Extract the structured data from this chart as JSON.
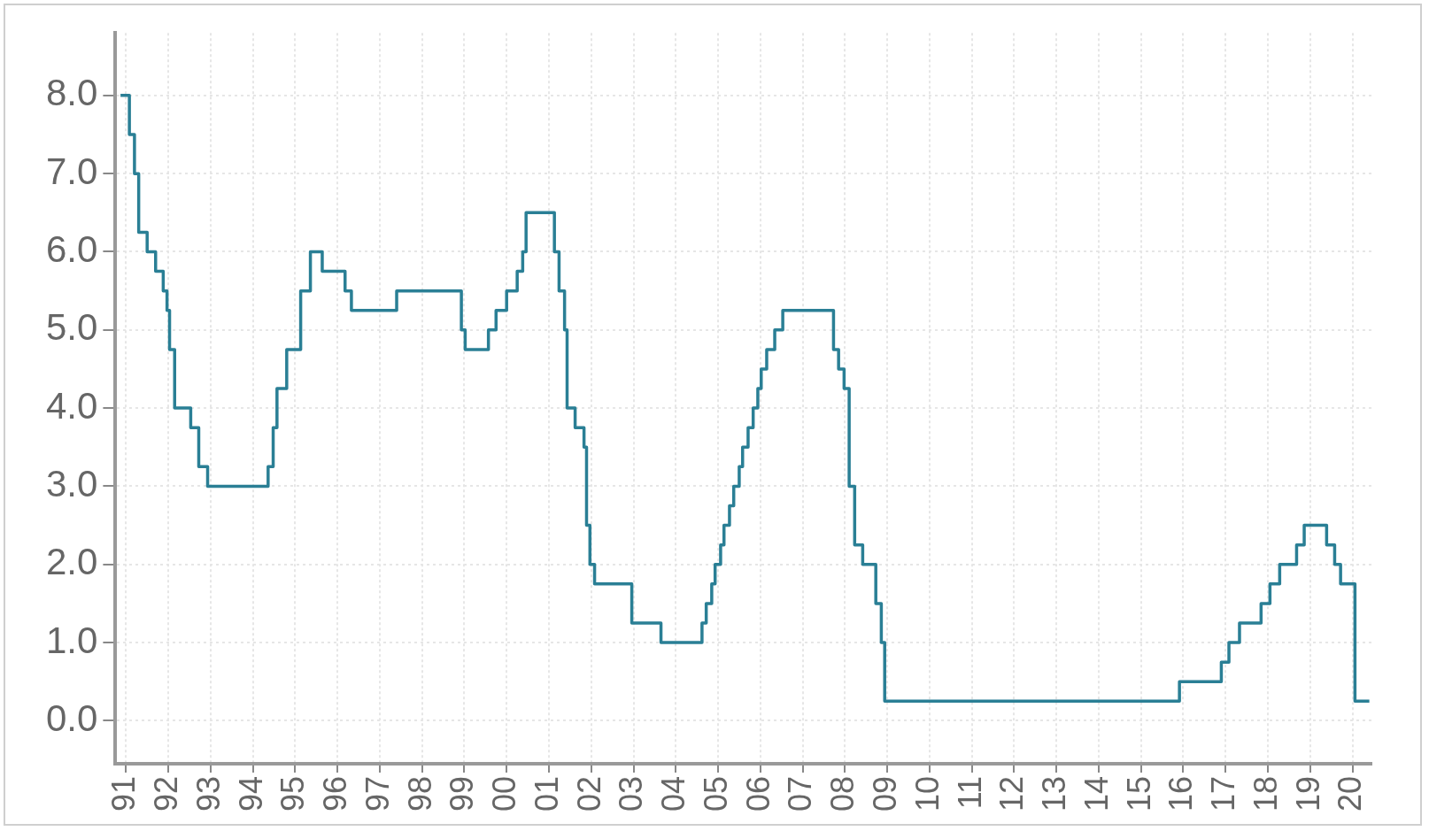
{
  "chart_data": {
    "type": "step",
    "x": [
      1990.87,
      1991.08,
      1991.2,
      1991.3,
      1991.5,
      1991.7,
      1991.88,
      1991.97,
      1992.03,
      1992.15,
      1992.53,
      1992.72,
      1992.93,
      1994.36,
      1994.48,
      1994.57,
      1994.8,
      1995.13,
      1995.36,
      1995.64,
      1996.18,
      1996.33,
      1997.4,
      1998.93,
      1999.02,
      1999.57,
      1999.75,
      2000.0,
      2000.25,
      2000.38,
      2000.46,
      2001.13,
      2001.24,
      2001.37,
      2001.43,
      2001.62,
      2001.83,
      2001.89,
      2001.97,
      2002.08,
      2002.96,
      2003.65,
      2004.62,
      2004.72,
      2004.85,
      2004.93,
      2005.06,
      2005.14,
      2005.27,
      2005.37,
      2005.5,
      2005.58,
      2005.71,
      2005.83,
      2005.94,
      2006.02,
      2006.15,
      2006.34,
      2006.53,
      2007.73,
      2007.85,
      2007.98,
      2008.1,
      2008.23,
      2008.42,
      2008.73,
      2008.86,
      2008.94,
      2015.91,
      2016.9,
      2017.08,
      2017.33,
      2017.84,
      2018.05,
      2018.28,
      2018.68,
      2018.86,
      2019.39,
      2019.58,
      2019.72,
      2020.06,
      2020.4
    ],
    "series": [
      {
        "color": "#2a7f95",
        "values": [
          8.0,
          7.5,
          7.0,
          6.25,
          6.0,
          5.75,
          5.5,
          5.25,
          4.75,
          4.0,
          3.75,
          3.25,
          3.0,
          3.25,
          3.75,
          4.25,
          4.75,
          5.5,
          6.0,
          5.75,
          5.5,
          5.25,
          5.5,
          5.0,
          4.75,
          5.0,
          5.25,
          5.5,
          5.75,
          6.0,
          6.5,
          6.0,
          5.5,
          5.0,
          4.0,
          3.75,
          3.5,
          2.5,
          2.0,
          1.75,
          1.25,
          1.0,
          1.25,
          1.5,
          1.75,
          2.0,
          2.25,
          2.5,
          2.75,
          3.0,
          3.25,
          3.5,
          3.75,
          4.0,
          4.25,
          4.5,
          4.75,
          5.0,
          5.25,
          4.75,
          4.5,
          4.25,
          3.0,
          2.25,
          2.0,
          1.5,
          1.0,
          0.25,
          0.5,
          0.75,
          1.0,
          1.25,
          1.5,
          1.75,
          2.0,
          2.25,
          2.5,
          2.25,
          2.0,
          1.75,
          0.25,
          0.25
        ]
      }
    ],
    "xlim": [
      1990.75,
      2020.45
    ],
    "xticks": [
      {
        "value": 1991,
        "label": "91"
      },
      {
        "value": 1992,
        "label": "92"
      },
      {
        "value": 1993,
        "label": "93"
      },
      {
        "value": 1994,
        "label": "94"
      },
      {
        "value": 1995,
        "label": "95"
      },
      {
        "value": 1996,
        "label": "96"
      },
      {
        "value": 1997,
        "label": "97"
      },
      {
        "value": 1998,
        "label": "98"
      },
      {
        "value": 1999,
        "label": "99"
      },
      {
        "value": 2000,
        "label": "00"
      },
      {
        "value": 2001,
        "label": "01"
      },
      {
        "value": 2002,
        "label": "02"
      },
      {
        "value": 2003,
        "label": "03"
      },
      {
        "value": 2004,
        "label": "04"
      },
      {
        "value": 2005,
        "label": "05"
      },
      {
        "value": 2006,
        "label": "06"
      },
      {
        "value": 2007,
        "label": "07"
      },
      {
        "value": 2008,
        "label": "08"
      },
      {
        "value": 2009,
        "label": "09"
      },
      {
        "value": 2010,
        "label": "10"
      },
      {
        "value": 2011,
        "label": "11"
      },
      {
        "value": 2012,
        "label": "12"
      },
      {
        "value": 2013,
        "label": "13"
      },
      {
        "value": 2014,
        "label": "14"
      },
      {
        "value": 2015,
        "label": "15"
      },
      {
        "value": 2016,
        "label": "16"
      },
      {
        "value": 2017,
        "label": "17"
      },
      {
        "value": 2018,
        "label": "18"
      },
      {
        "value": 2019,
        "label": "19"
      },
      {
        "value": 2020,
        "label": "20"
      }
    ],
    "ylim": [
      -0.55,
      8.8
    ],
    "yticks": [
      {
        "value": 0,
        "label": "0.0"
      },
      {
        "value": 1,
        "label": "1.0"
      },
      {
        "value": 2,
        "label": "2.0"
      },
      {
        "value": 3,
        "label": "3.0"
      },
      {
        "value": 4,
        "label": "4.0"
      },
      {
        "value": 5,
        "label": "5.0"
      },
      {
        "value": 6,
        "label": "6.0"
      },
      {
        "value": 7,
        "label": "7.0"
      },
      {
        "value": 8,
        "label": "8.0"
      }
    ],
    "grid": true,
    "legend": false,
    "marker": "none",
    "line_style": "solid"
  }
}
